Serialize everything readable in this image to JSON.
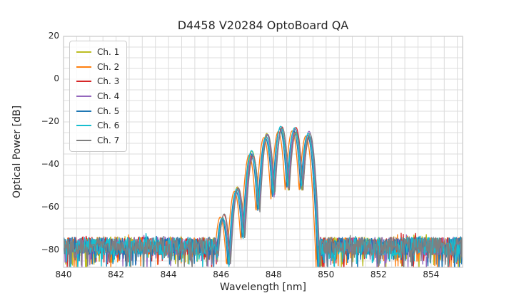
{
  "chart_data": {
    "type": "line",
    "title": "D4458 V20284 OptoBoard QA",
    "xlabel": "Wavelength [nm]",
    "ylabel": "Optical Power [dB]",
    "xlim": [
      840,
      855.2
    ],
    "ylim": [
      -88,
      20
    ],
    "xticks": {
      "values": [
        840,
        842,
        844,
        846,
        848,
        850,
        852,
        854
      ],
      "labels": [
        "840",
        "842",
        "844",
        "846",
        "848",
        "850",
        "852",
        "854"
      ]
    },
    "yticks": {
      "values": [
        20,
        0,
        -20,
        -40,
        -60,
        -80
      ],
      "labels": [
        "20",
        "0",
        "−20",
        "−40",
        "−60",
        "−80"
      ]
    },
    "grid": {
      "x_step_nm": 0.5,
      "y_step_db": 5,
      "color": "#dcdcdc",
      "frame_color": "#c8c8c8",
      "on": true
    },
    "legend": {
      "position": "upper left"
    },
    "noise_floor": {
      "mean_db": -78,
      "top_spike_db": -71.5,
      "clipped_below_db": -88,
      "step_nm": 0.02
    },
    "signal": {
      "band_start_nm": 845.84,
      "band_end_nm": 849.73,
      "lobe_centers_nm": [
        846.07,
        846.61,
        847.17,
        847.73,
        848.28,
        848.81,
        849.33
      ],
      "lobe_peaks_db": [
        -64.5,
        -51.0,
        -34.8,
        -26.8,
        -23.2,
        -23.6,
        -25.8
      ],
      "lobe_half_width_nm": 0.2725,
      "notch_depth_db": 30,
      "start_margin_nm": 0.23,
      "end_margin_nm": 0.4,
      "peak_power_db": -22.6
    },
    "series": [
      {
        "name": "Ch. 1",
        "color": "#bcbd22",
        "offset_nm": 0.01
      },
      {
        "name": "Ch. 2",
        "color": "#ff7f0e",
        "offset_nm": -0.1
      },
      {
        "name": "Ch. 3",
        "color": "#d62728",
        "offset_nm": 0.04
      },
      {
        "name": "Ch. 4",
        "color": "#9467bd",
        "offset_nm": 0.02
      },
      {
        "name": "Ch. 5",
        "color": "#1f77b4",
        "offset_nm": -0.04
      },
      {
        "name": "Ch. 6",
        "color": "#17becf",
        "offset_nm": -0.01
      },
      {
        "name": "Ch. 7",
        "color": "#7f7f7f",
        "offset_nm": 0.05
      }
    ]
  }
}
